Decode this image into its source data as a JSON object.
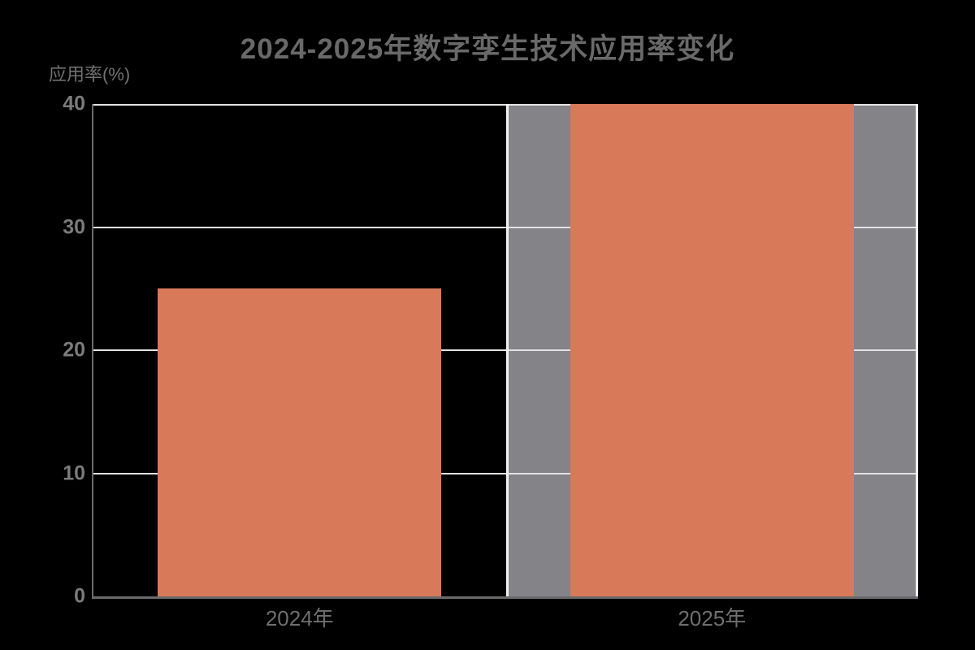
{
  "chart_data": {
    "type": "bar",
    "title": "2024-2025年数字孪生技术应用率变化",
    "ylabel": "应用率(%)",
    "xlabel": "",
    "categories": [
      "2024年",
      "2025年"
    ],
    "values": [
      25,
      40
    ],
    "ylim": [
      0,
      40
    ],
    "yticks": [
      0,
      10,
      20,
      30,
      40
    ],
    "ytick_labels": [
      "0",
      "10",
      "20",
      "30",
      "40"
    ],
    "grid": "horizontal gridlines at 10/20/30/40 plus vertical slot-boundary lines",
    "legend": "none",
    "bar_color": "#d8795a",
    "highlight_band": {
      "category_index": 1,
      "color": "#838388"
    },
    "background_color": "#000000",
    "gridline_color": "#e2e2e2",
    "axis_spine_color": "#6b6b6b",
    "text_color": "#6f6f6f"
  }
}
